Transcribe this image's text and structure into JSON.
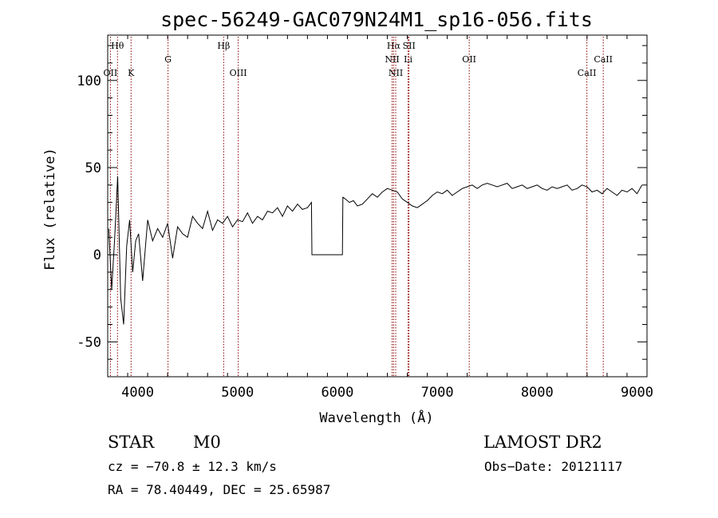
{
  "chart_data": {
    "type": "line",
    "title": "spec-56249-GAC079N24M1_sp16-056.fits",
    "xlabel": "Wavelength (Å)",
    "ylabel": "Flux (relative)",
    "xlim": [
      3700,
      9100
    ],
    "ylim": [
      -70,
      126
    ],
    "x_ticks": [
      4000,
      5000,
      6000,
      7000,
      8000,
      9000
    ],
    "y_ticks": [
      -50,
      0,
      50,
      100
    ],
    "grid": false,
    "spectrum": {
      "x": [
        3710,
        3740,
        3770,
        3800,
        3830,
        3860,
        3890,
        3920,
        3950,
        3980,
        4010,
        4050,
        4100,
        4150,
        4200,
        4250,
        4300,
        4350,
        4400,
        4450,
        4500,
        4550,
        4600,
        4650,
        4700,
        4750,
        4800,
        4850,
        4900,
        4950,
        5000,
        5050,
        5100,
        5150,
        5200,
        5250,
        5300,
        5350,
        5400,
        5450,
        5500,
        5550,
        5600,
        5650,
        5700,
        5740,
        5745,
        6050,
        6055,
        6080,
        6120,
        6160,
        6200,
        6250,
        6300,
        6350,
        6400,
        6450,
        6500,
        6550,
        6600,
        6650,
        6700,
        6750,
        6800,
        6850,
        6900,
        6950,
        7000,
        7050,
        7100,
        7150,
        7200,
        7250,
        7300,
        7350,
        7400,
        7450,
        7500,
        7550,
        7600,
        7650,
        7700,
        7750,
        7800,
        7850,
        7900,
        7950,
        8000,
        8050,
        8100,
        8150,
        8200,
        8250,
        8300,
        8350,
        8400,
        8450,
        8500,
        8550,
        8600,
        8650,
        8700,
        8750,
        8800,
        8850,
        8900,
        8950,
        9000,
        9050
      ],
      "y": [
        15,
        -20,
        10,
        45,
        -25,
        -40,
        5,
        20,
        -10,
        8,
        12,
        -15,
        20,
        8,
        15,
        10,
        18,
        -2,
        16,
        12,
        10,
        22,
        18,
        15,
        25,
        14,
        20,
        18,
        22,
        16,
        20,
        19,
        24,
        18,
        22,
        20,
        25,
        24,
        27,
        22,
        28,
        25,
        29,
        26,
        27,
        30,
        0,
        0,
        33,
        32,
        30,
        31,
        28,
        29,
        32,
        35,
        33,
        36,
        38,
        37,
        36,
        32,
        30,
        28,
        27,
        29,
        31,
        34,
        36,
        35,
        37,
        34,
        36,
        38,
        39,
        40,
        38,
        40,
        41,
        40,
        39,
        40,
        41,
        38,
        39,
        40,
        38,
        39,
        40,
        38,
        37,
        39,
        38,
        39,
        40,
        37,
        38,
        40,
        39,
        36,
        37,
        35,
        38,
        36,
        34,
        37,
        36,
        38,
        35,
        40
      ]
    },
    "emission_lines": [
      {
        "label": "Hθ",
        "x": 3798,
        "row": 1
      },
      {
        "label": "OII",
        "x": 3727,
        "row": 3
      },
      {
        "label": "K",
        "x": 3934,
        "row": 3
      },
      {
        "label": "G",
        "x": 4304,
        "row": 2
      },
      {
        "label": "Hβ",
        "x": 4861,
        "row": 1
      },
      {
        "label": "OIII",
        "x": 5007,
        "row": 3
      },
      {
        "label": "Hα",
        "x": 6563,
        "row": 1
      },
      {
        "label": "NII",
        "x": 6548,
        "row": 2
      },
      {
        "label": "NII",
        "x": 6584,
        "row": 3
      },
      {
        "label": "SII",
        "x": 6717,
        "row": 1
      },
      {
        "label": "Li",
        "x": 6708,
        "row": 2
      },
      {
        "label": "OII",
        "x": 7320,
        "row": 2
      },
      {
        "label": "CaII",
        "x": 8498,
        "row": 3
      },
      {
        "label": "CaII",
        "x": 8662,
        "row": 2
      }
    ]
  },
  "info": {
    "class": "STAR",
    "subclass": "M0",
    "survey": "LAMOST DR2",
    "cz": "cz = −70.8 ± 12.3 km/s",
    "obs_date": "Obs−Date: 20121117",
    "radec": "RA =  78.40449, DEC =  25.65987"
  },
  "colors": {
    "spectrum": "#000000",
    "line_marker": "#8b0000",
    "axis": "#000000"
  }
}
